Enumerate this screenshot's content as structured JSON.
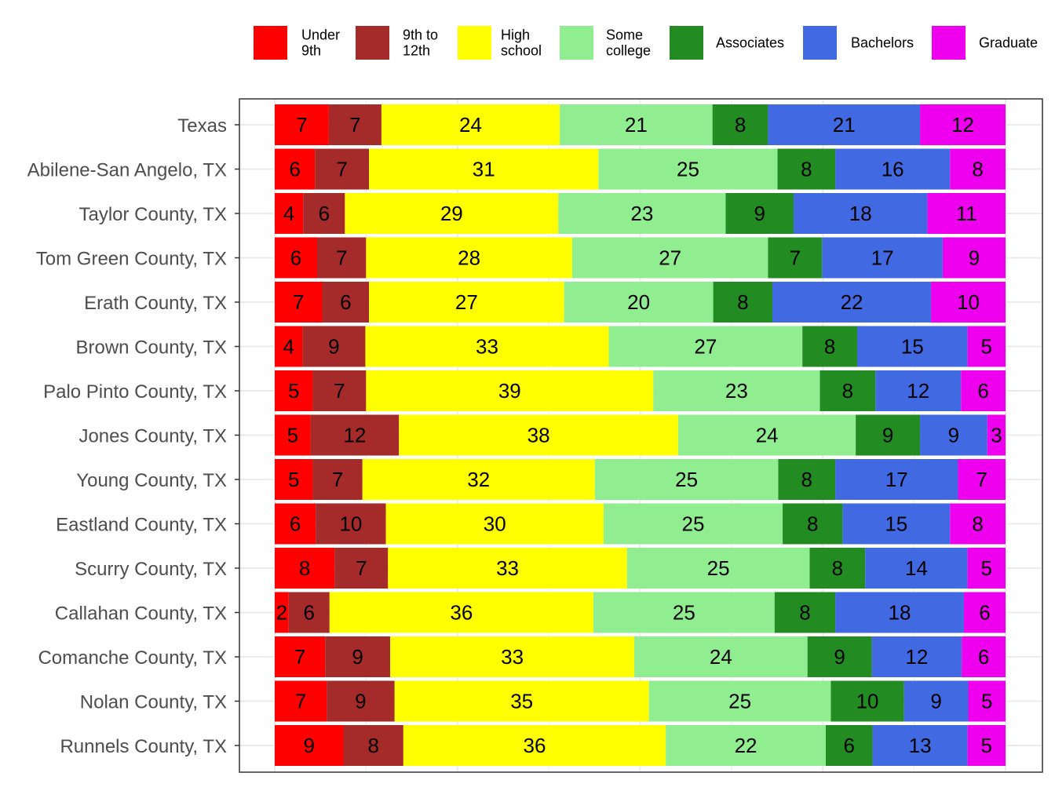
{
  "chart_data": {
    "type": "bar",
    "orientation": "horizontal",
    "stacked": true,
    "title": "",
    "xlabel": "",
    "ylabel": "",
    "xlim": [
      0,
      100
    ],
    "grid": true,
    "legend_position": "top",
    "categories": [
      "Texas",
      "Abilene-San Angelo, TX",
      "Taylor County, TX",
      "Tom Green County, TX",
      "Erath County, TX",
      "Brown County, TX",
      "Palo Pinto County, TX",
      "Jones County, TX",
      "Young County, TX",
      "Eastland County, TX",
      "Scurry County, TX",
      "Callahan County, TX",
      "Comanche County, TX",
      "Nolan County, TX",
      "Runnels County, TX"
    ],
    "series": [
      {
        "name": "Under 9th",
        "legend_lines": [
          "Under",
          "9th"
        ],
        "color": "#ff0000",
        "values": [
          7.4,
          5.5,
          3.9,
          5.8,
          6.5,
          3.8,
          5.2,
          4.9,
          5.2,
          5.6,
          8.2,
          1.9,
          6.9,
          7.1,
          9.4
        ]
      },
      {
        "name": "9th to 12th",
        "legend_lines": [
          "9th to",
          "12th"
        ],
        "color": "#a52a2a",
        "values": [
          7.2,
          7.4,
          5.7,
          6.7,
          6.4,
          8.6,
          7.3,
          12.1,
          6.8,
          9.6,
          7.3,
          5.6,
          8.9,
          9.3,
          8.2
        ]
      },
      {
        "name": "High school",
        "legend_lines": [
          "High",
          "school"
        ],
        "color": "#ffff00",
        "values": [
          24.4,
          31.4,
          29.2,
          28.2,
          26.7,
          33.3,
          39.3,
          38.2,
          31.8,
          29.8,
          32.7,
          36.1,
          33.4,
          34.8,
          35.9
        ]
      },
      {
        "name": "Some college",
        "legend_lines": [
          "Some",
          "college"
        ],
        "color": "#90ee90",
        "values": [
          20.9,
          24.5,
          22.9,
          26.8,
          20.4,
          26.5,
          22.8,
          24.3,
          25.1,
          24.5,
          25.0,
          24.8,
          23.7,
          24.9,
          21.9
        ]
      },
      {
        "name": "Associates",
        "legend_lines": [
          "Associates"
        ],
        "color": "#228b22",
        "values": [
          7.6,
          7.9,
          9.3,
          7.4,
          8.1,
          7.5,
          7.6,
          8.8,
          7.8,
          8.2,
          7.6,
          8.3,
          8.8,
          10.0,
          6.4
        ]
      },
      {
        "name": "Bachelors",
        "legend_lines": [
          "Bachelors"
        ],
        "color": "#4169e1",
        "values": [
          20.8,
          15.7,
          18.3,
          16.5,
          21.7,
          15.1,
          11.7,
          9.2,
          16.8,
          14.7,
          14.0,
          17.6,
          12.3,
          8.8,
          13.0
        ]
      },
      {
        "name": "Graduate",
        "legend_lines": [
          "Graduate"
        ],
        "color": "#ee00ee",
        "values": [
          11.7,
          7.6,
          10.7,
          8.6,
          10.2,
          5.2,
          6.1,
          2.5,
          6.5,
          7.6,
          5.2,
          5.7,
          6.0,
          5.1,
          5.2
        ]
      }
    ]
  }
}
